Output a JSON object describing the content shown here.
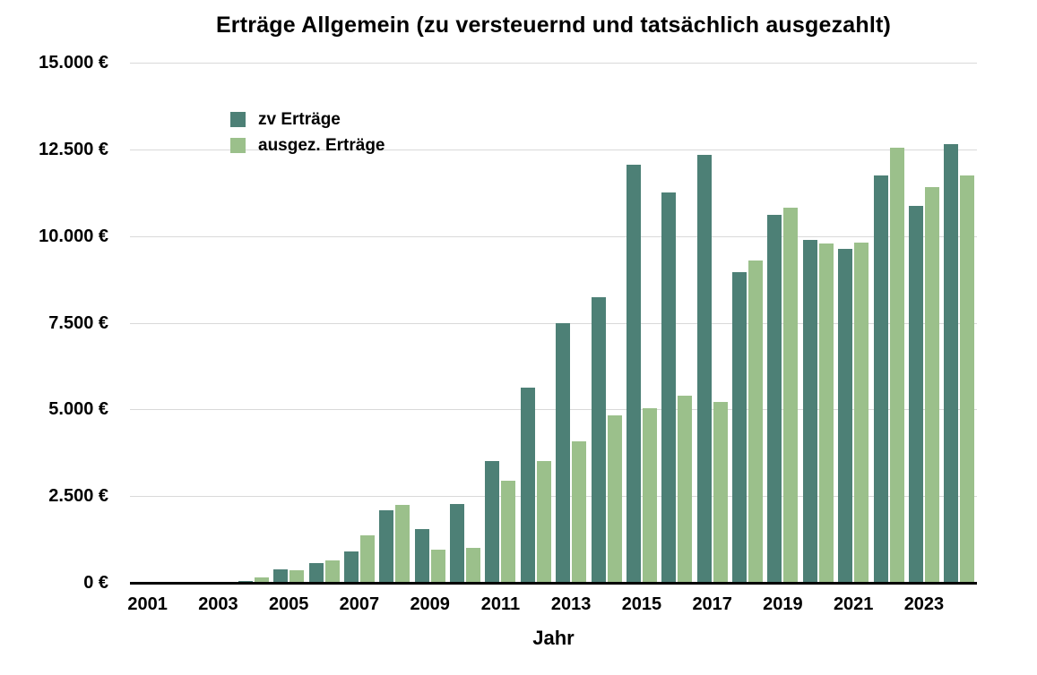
{
  "title": "Erträge Allgemein (zu versteuernd und tatsächlich ausgezahlt)",
  "chart_data": {
    "type": "bar",
    "title": "Erträge Allgemein (zu versteuernd und tatsächlich ausgezahlt)",
    "xlabel": "Jahr",
    "ylabel": "",
    "ylim": [
      0,
      15000
    ],
    "grid": true,
    "legend_position": "top-left",
    "background": "#ffffff",
    "axis_color": "#000000",
    "gridline_color": "#d9d9d9",
    "categories": [
      2001,
      2002,
      2003,
      2004,
      2005,
      2006,
      2007,
      2008,
      2009,
      2010,
      2011,
      2012,
      2013,
      2014,
      2015,
      2016,
      2017,
      2018,
      2019,
      2020,
      2021,
      2022,
      2023,
      2024
    ],
    "series": [
      {
        "name": "zv Erträge",
        "color": "#4d8076",
        "values": [
          0,
          0,
          0,
          60,
          400,
          575,
          900,
          2100,
          1540,
          2280,
          3500,
          5620,
          7480,
          8240,
          12070,
          11250,
          12350,
          8950,
          10600,
          9900,
          9630,
          11740,
          10870,
          12660
        ]
      },
      {
        "name": "ausgez. Erträge",
        "color": "#9bc08b",
        "values": [
          0,
          0,
          0,
          150,
          370,
          640,
          1360,
          2250,
          950,
          1000,
          2950,
          3510,
          4070,
          4820,
          5040,
          5400,
          5220,
          9300,
          10830,
          9780,
          9800,
          12550,
          11410,
          11750
        ]
      }
    ],
    "yticks": [
      {
        "value": 0,
        "label": "0 €"
      },
      {
        "value": 2500,
        "label": "2.500 €"
      },
      {
        "value": 5000,
        "label": "5.000 €"
      },
      {
        "value": 7500,
        "label": "7.500 €"
      },
      {
        "value": 10000,
        "label": "10.000 €"
      },
      {
        "value": 12500,
        "label": "12.500 €"
      },
      {
        "value": 15000,
        "label": "15.000 €"
      }
    ],
    "xticks": [
      "2001",
      "2003",
      "2005",
      "2007",
      "2009",
      "2011",
      "2013",
      "2015",
      "2017",
      "2019",
      "2021",
      "2023"
    ]
  }
}
